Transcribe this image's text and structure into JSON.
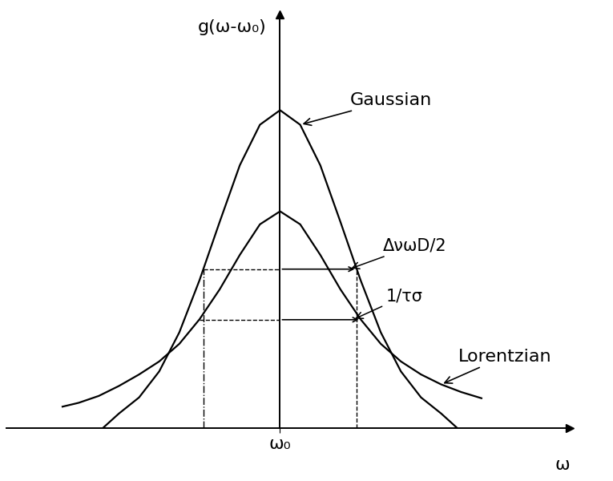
{
  "chart_data": {
    "type": "line",
    "x_label": "ω",
    "y_label": "g(ω-ω₀)",
    "xlim": [
      -3.4,
      3.6
    ],
    "ylim": [
      0,
      5.4
    ],
    "xticks": [
      {
        "value": 0,
        "label": "ω₀"
      }
    ],
    "yticks": [],
    "tick_labels": "x",
    "grid": false,
    "series": [
      {
        "name": "Gaussian",
        "color": "#000000",
        "line_style": "solid",
        "x": [
          -2.2,
          -2.0,
          -1.75,
          -1.5,
          -1.25,
          -1.0,
          -0.75,
          -0.5,
          -0.25,
          0,
          0.25,
          0.5,
          0.75,
          1.0,
          1.25,
          1.5,
          1.75,
          2.0,
          2.2
        ],
        "values": [
          0,
          0.19,
          0.4,
          0.74,
          1.25,
          1.93,
          2.69,
          3.43,
          3.96,
          4.15,
          3.96,
          3.43,
          2.69,
          1.93,
          1.25,
          0.74,
          0.4,
          0.19,
          0
        ]
      },
      {
        "name": "Lorentzian",
        "color": "#000000",
        "line_style": "solid",
        "x": [
          -2.7,
          -2.5,
          -2.25,
          -2.0,
          -1.75,
          -1.5,
          -1.25,
          -1.0,
          -0.75,
          -0.5,
          -0.25,
          0,
          0.25,
          0.5,
          0.75,
          1.0,
          1.25,
          1.5,
          1.75,
          2.0,
          2.25,
          2.5
        ],
        "values": [
          0.28,
          0.33,
          0.42,
          0.55,
          0.7,
          0.87,
          1.1,
          1.42,
          1.81,
          2.26,
          2.66,
          2.83,
          2.66,
          2.26,
          1.81,
          1.42,
          1.1,
          0.87,
          0.7,
          0.57,
          0.47,
          0.39
        ]
      }
    ],
    "annotations": [
      {
        "text": "ΔνωD/2",
        "series": "Gaussian"
      },
      {
        "text": "1/τσ",
        "series": "Lorentzian"
      }
    ]
  }
}
